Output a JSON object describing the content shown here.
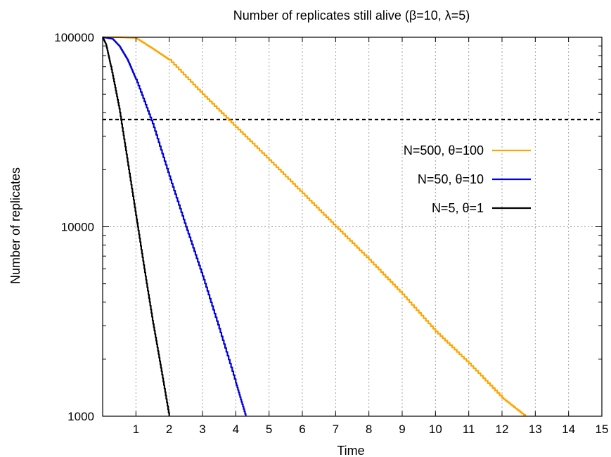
{
  "chart_data": {
    "type": "line",
    "title": "Number of replicates still alive (β=10, λ=5)",
    "xlabel": "Time",
    "ylabel": "Number of replicates",
    "xlim": [
      0,
      15
    ],
    "ylim": [
      1000,
      100000
    ],
    "yscale": "log",
    "grid": true,
    "legend_position": "right",
    "x_ticks": [
      "1",
      "2",
      "3",
      "4",
      "5",
      "6",
      "7",
      "8",
      "9",
      "10",
      "11",
      "12",
      "13",
      "14",
      "15"
    ],
    "y_ticks": [
      "1000",
      "10000",
      "100000"
    ],
    "reference_line": {
      "y": 36800,
      "style": "dashed"
    },
    "series": [
      {
        "name": "N=500, θ=100",
        "color": "#ffa500",
        "x": [
          0,
          0.5,
          1,
          1.5,
          2,
          3,
          4,
          5,
          6,
          7,
          8,
          9,
          10,
          11,
          12,
          12.7
        ],
        "y": [
          100000,
          100000,
          99000,
          87000,
          76000,
          50000,
          33500,
          22500,
          15000,
          10000,
          6700,
          4400,
          2800,
          1900,
          1250,
          1000
        ]
      },
      {
        "name": "N=50, θ=10",
        "color": "#0000dd",
        "x": [
          0,
          0.3,
          0.5,
          0.75,
          1,
          1.5,
          2,
          2.5,
          3,
          3.5,
          4,
          4.3
        ],
        "y": [
          100000,
          98000,
          90000,
          76000,
          60000,
          35000,
          18500,
          10000,
          5500,
          2900,
          1500,
          1000
        ]
      },
      {
        "name": "N=5, θ=1",
        "color": "#000000",
        "x": [
          0,
          0.1,
          0.25,
          0.5,
          0.75,
          1,
          1.25,
          1.5,
          1.75,
          2
        ],
        "y": [
          100000,
          92000,
          70000,
          42000,
          22000,
          11500,
          6000,
          3200,
          1800,
          1000
        ]
      }
    ]
  }
}
